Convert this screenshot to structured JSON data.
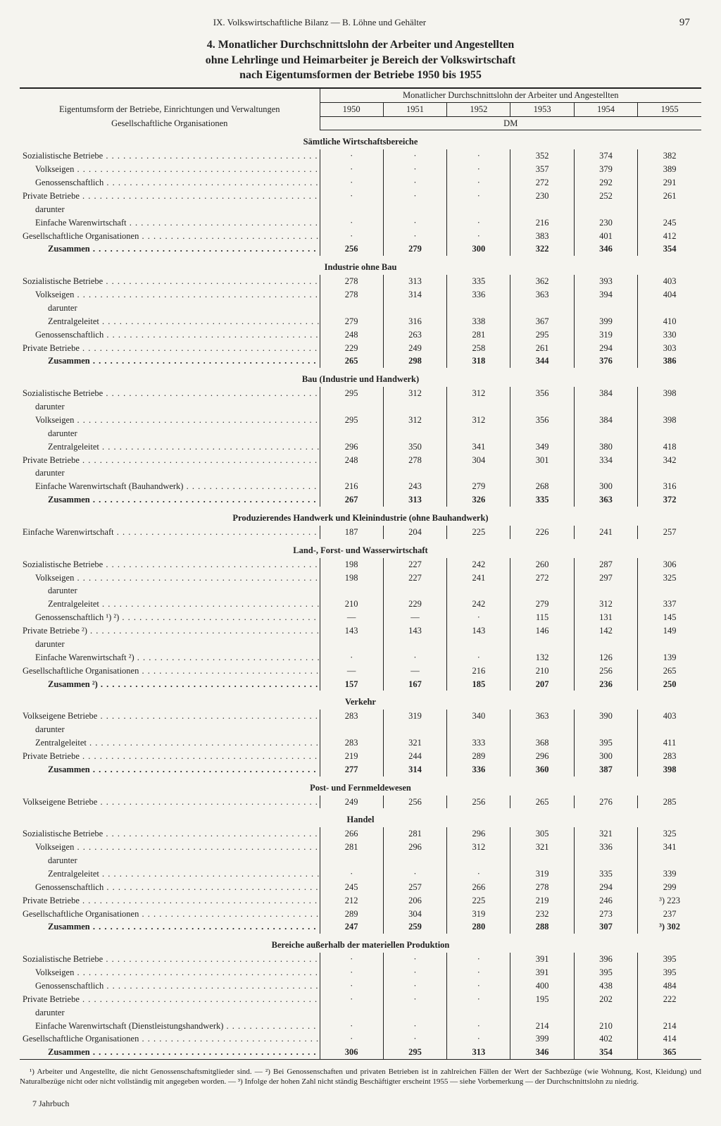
{
  "page_number": "97",
  "running_head": "IX. Volkswirtschaftliche Bilanz — B. Löhne und Gehälter",
  "title_number": "4.",
  "title_line1": "Monatlicher Durchschnittslohn der Arbeiter und Angestellten",
  "title_line2": "ohne Lehrlinge und Heimarbeiter je Bereich der Volkswirtschaft",
  "title_line3": "nach Eigentumsformen der Betriebe 1950 bis 1955",
  "stub_head1": "Eigentumsform der Betriebe, Einrichtungen und Verwaltungen",
  "stub_head2": "Gesellschaftliche Organisationen",
  "span_head": "Monatlicher Durchschnittslohn der Arbeiter und Angestellten",
  "unit_label": "DM",
  "years": [
    "1950",
    "1951",
    "1952",
    "1953",
    "1954",
    "1955"
  ],
  "footer": "7  Jahrbuch",
  "footnotes": "¹) Arbeiter und Angestellte, die nicht Genossenschaftsmitglieder sind. — ²) Bei Genossenschaften und privaten Betrieben ist in zahlreichen Fällen der Wert der Sachbezüge (wie Wohnung, Kost, Kleidung) und Naturalbezüge nicht oder nicht vollständig mit angegeben worden. — ³) Infolge der hohen Zahl nicht ständig Beschäftigter erscheint 1955 — siehe Vorbemerkung — der Durchschnittslohn zu niedrig.",
  "sections": [
    {
      "title": "Sämtliche Wirtschaftsbereiche",
      "rows": [
        {
          "label": "Sozialistische Betriebe",
          "indent": 0,
          "bold": false,
          "v": [
            "·",
            "·",
            "·",
            "352",
            "374",
            "382"
          ]
        },
        {
          "label": "Volkseigen",
          "indent": 1,
          "bold": false,
          "v": [
            "·",
            "·",
            "·",
            "357",
            "379",
            "389"
          ]
        },
        {
          "label": "Genossenschaftlich",
          "indent": 1,
          "bold": false,
          "v": [
            "·",
            "·",
            "·",
            "272",
            "292",
            "291"
          ]
        },
        {
          "label": "Private Betriebe",
          "indent": 0,
          "bold": false,
          "v": [
            "·",
            "·",
            "·",
            "230",
            "252",
            "261"
          ]
        },
        {
          "label": "darunter",
          "indent": 1,
          "bold": false,
          "nodots": true,
          "v": [
            "",
            "",
            "",
            "",
            "",
            ""
          ]
        },
        {
          "label": "Einfache Warenwirtschaft",
          "indent": 1,
          "bold": false,
          "v": [
            "·",
            "·",
            "·",
            "216",
            "230",
            "245"
          ]
        },
        {
          "label": "Gesellschaftliche Organisationen",
          "indent": 0,
          "bold": false,
          "v": [
            "·",
            "·",
            "·",
            "383",
            "401",
            "412"
          ]
        },
        {
          "label": "Zusammen",
          "indent": 2,
          "bold": true,
          "v": [
            "256",
            "279",
            "300",
            "322",
            "346",
            "354"
          ]
        }
      ]
    },
    {
      "title": "Industrie ohne Bau",
      "rows": [
        {
          "label": "Sozialistische Betriebe",
          "indent": 0,
          "bold": false,
          "v": [
            "278",
            "313",
            "335",
            "362",
            "393",
            "403"
          ]
        },
        {
          "label": "Volkseigen",
          "indent": 1,
          "bold": false,
          "v": [
            "278",
            "314",
            "336",
            "363",
            "394",
            "404"
          ]
        },
        {
          "label": "darunter",
          "indent": 2,
          "bold": false,
          "nodots": true,
          "v": [
            "",
            "",
            "",
            "",
            "",
            ""
          ]
        },
        {
          "label": "Zentralgeleitet",
          "indent": 2,
          "bold": false,
          "v": [
            "279",
            "316",
            "338",
            "367",
            "399",
            "410"
          ]
        },
        {
          "label": "Genossenschaftlich",
          "indent": 1,
          "bold": false,
          "v": [
            "248",
            "263",
            "281",
            "295",
            "319",
            "330"
          ]
        },
        {
          "label": "Private Betriebe",
          "indent": 0,
          "bold": false,
          "v": [
            "229",
            "249",
            "258",
            "261",
            "294",
            "303"
          ]
        },
        {
          "label": "Zusammen",
          "indent": 2,
          "bold": true,
          "v": [
            "265",
            "298",
            "318",
            "344",
            "376",
            "386"
          ]
        }
      ]
    },
    {
      "title": "Bau (Industrie und Handwerk)",
      "rows": [
        {
          "label": "Sozialistische Betriebe",
          "indent": 0,
          "bold": false,
          "v": [
            "295",
            "312",
            "312",
            "356",
            "384",
            "398"
          ]
        },
        {
          "label": "darunter",
          "indent": 1,
          "bold": false,
          "nodots": true,
          "v": [
            "",
            "",
            "",
            "",
            "",
            ""
          ]
        },
        {
          "label": "Volkseigen",
          "indent": 1,
          "bold": false,
          "v": [
            "295",
            "312",
            "312",
            "356",
            "384",
            "398"
          ]
        },
        {
          "label": "darunter",
          "indent": 2,
          "bold": false,
          "nodots": true,
          "v": [
            "",
            "",
            "",
            "",
            "",
            ""
          ]
        },
        {
          "label": "Zentralgeleitet",
          "indent": 2,
          "bold": false,
          "v": [
            "296",
            "350",
            "341",
            "349",
            "380",
            "418"
          ]
        },
        {
          "label": "Private Betriebe",
          "indent": 0,
          "bold": false,
          "v": [
            "248",
            "278",
            "304",
            "301",
            "334",
            "342"
          ]
        },
        {
          "label": "darunter",
          "indent": 1,
          "bold": false,
          "nodots": true,
          "v": [
            "",
            "",
            "",
            "",
            "",
            ""
          ]
        },
        {
          "label": "Einfache Warenwirtschaft (Bauhandwerk)",
          "indent": 1,
          "bold": false,
          "v": [
            "216",
            "243",
            "279",
            "268",
            "300",
            "316"
          ]
        },
        {
          "label": "Zusammen",
          "indent": 2,
          "bold": true,
          "v": [
            "267",
            "313",
            "326",
            "335",
            "363",
            "372"
          ]
        }
      ]
    },
    {
      "title": "Produzierendes Handwerk und Kleinindustrie (ohne Bauhandwerk)",
      "rows": [
        {
          "label": "Einfache Warenwirtschaft",
          "indent": 0,
          "bold": false,
          "v": [
            "187",
            "204",
            "225",
            "226",
            "241",
            "257"
          ]
        }
      ]
    },
    {
      "title": "Land-, Forst- und Wasserwirtschaft",
      "rows": [
        {
          "label": "Sozialistische Betriebe",
          "indent": 0,
          "bold": false,
          "v": [
            "198",
            "227",
            "242",
            "260",
            "287",
            "306"
          ]
        },
        {
          "label": "Volkseigen",
          "indent": 1,
          "bold": false,
          "v": [
            "198",
            "227",
            "241",
            "272",
            "297",
            "325"
          ]
        },
        {
          "label": "darunter",
          "indent": 2,
          "bold": false,
          "nodots": true,
          "v": [
            "",
            "",
            "",
            "",
            "",
            ""
          ]
        },
        {
          "label": "Zentralgeleitet",
          "indent": 2,
          "bold": false,
          "v": [
            "210",
            "229",
            "242",
            "279",
            "312",
            "337"
          ]
        },
        {
          "label": "Genossenschaftlich ¹) ²)",
          "indent": 1,
          "bold": false,
          "v": [
            "—",
            "—",
            "·",
            "115",
            "131",
            "145"
          ]
        },
        {
          "label": "Private Betriebe ²)",
          "indent": 0,
          "bold": false,
          "v": [
            "143",
            "143",
            "143",
            "146",
            "142",
            "149"
          ]
        },
        {
          "label": "darunter",
          "indent": 1,
          "bold": false,
          "nodots": true,
          "v": [
            "",
            "",
            "",
            "",
            "",
            ""
          ]
        },
        {
          "label": "Einfache Warenwirtschaft ²)",
          "indent": 1,
          "bold": false,
          "v": [
            "·",
            "·",
            "·",
            "132",
            "126",
            "139"
          ]
        },
        {
          "label": "Gesellschaftliche Organisationen",
          "indent": 0,
          "bold": false,
          "v": [
            "—",
            "—",
            "216",
            "210",
            "256",
            "265"
          ]
        },
        {
          "label": "Zusammen ²)",
          "indent": 2,
          "bold": true,
          "v": [
            "157",
            "167",
            "185",
            "207",
            "236",
            "250"
          ]
        }
      ]
    },
    {
      "title": "Verkehr",
      "rows": [
        {
          "label": "Volkseigene Betriebe",
          "indent": 0,
          "bold": false,
          "v": [
            "283",
            "319",
            "340",
            "363",
            "390",
            "403"
          ]
        },
        {
          "label": "darunter",
          "indent": 1,
          "bold": false,
          "nodots": true,
          "v": [
            "",
            "",
            "",
            "",
            "",
            ""
          ]
        },
        {
          "label": "Zentralgeleitet",
          "indent": 1,
          "bold": false,
          "v": [
            "283",
            "321",
            "333",
            "368",
            "395",
            "411"
          ]
        },
        {
          "label": "Private Betriebe",
          "indent": 0,
          "bold": false,
          "v": [
            "219",
            "244",
            "289",
            "296",
            "300",
            "283"
          ]
        },
        {
          "label": "Zusammen",
          "indent": 2,
          "bold": true,
          "v": [
            "277",
            "314",
            "336",
            "360",
            "387",
            "398"
          ]
        }
      ]
    },
    {
      "title": "Post- und Fernmeldewesen",
      "rows": [
        {
          "label": "Volkseigene Betriebe",
          "indent": 0,
          "bold": false,
          "v": [
            "249",
            "256",
            "256",
            "265",
            "276",
            "285"
          ]
        }
      ]
    },
    {
      "title": "Handel",
      "rows": [
        {
          "label": "Sozialistische Betriebe",
          "indent": 0,
          "bold": false,
          "v": [
            "266",
            "281",
            "296",
            "305",
            "321",
            "325"
          ]
        },
        {
          "label": "Volkseigen",
          "indent": 1,
          "bold": false,
          "v": [
            "281",
            "296",
            "312",
            "321",
            "336",
            "341"
          ]
        },
        {
          "label": "darunter",
          "indent": 2,
          "bold": false,
          "nodots": true,
          "v": [
            "",
            "",
            "",
            "",
            "",
            ""
          ]
        },
        {
          "label": "Zentralgeleitet",
          "indent": 2,
          "bold": false,
          "v": [
            "·",
            "·",
            "·",
            "319",
            "335",
            "339"
          ]
        },
        {
          "label": "Genossenschaftlich",
          "indent": 1,
          "bold": false,
          "v": [
            "245",
            "257",
            "266",
            "278",
            "294",
            "299"
          ]
        },
        {
          "label": "Private Betriebe",
          "indent": 0,
          "bold": false,
          "v": [
            "212",
            "206",
            "225",
            "219",
            "246",
            "³) 223"
          ]
        },
        {
          "label": "Gesellschaftliche Organisationen",
          "indent": 0,
          "bold": false,
          "v": [
            "289",
            "304",
            "319",
            "232",
            "273",
            "237"
          ]
        },
        {
          "label": "Zusammen",
          "indent": 2,
          "bold": true,
          "v": [
            "247",
            "259",
            "280",
            "288",
            "307",
            "³) 302"
          ]
        }
      ]
    },
    {
      "title": "Bereiche außerhalb der materiellen Produktion",
      "rows": [
        {
          "label": "Sozialistische Betriebe",
          "indent": 0,
          "bold": false,
          "v": [
            "·",
            "·",
            "·",
            "391",
            "396",
            "395"
          ]
        },
        {
          "label": "Volkseigen",
          "indent": 1,
          "bold": false,
          "v": [
            "·",
            "·",
            "·",
            "391",
            "395",
            "395"
          ]
        },
        {
          "label": "Genossenschaftlich",
          "indent": 1,
          "bold": false,
          "v": [
            "·",
            "·",
            "·",
            "400",
            "438",
            "484"
          ]
        },
        {
          "label": "Private Betriebe",
          "indent": 0,
          "bold": false,
          "v": [
            "·",
            "·",
            "·",
            "195",
            "202",
            "222"
          ]
        },
        {
          "label": "darunter",
          "indent": 1,
          "bold": false,
          "nodots": true,
          "v": [
            "",
            "",
            "",
            "",
            "",
            ""
          ]
        },
        {
          "label": "Einfache Warenwirtschaft (Dienstleistungshandwerk)",
          "indent": 1,
          "bold": false,
          "v": [
            "·",
            "·",
            "·",
            "214",
            "210",
            "214"
          ]
        },
        {
          "label": "Gesellschaftliche Organisationen",
          "indent": 0,
          "bold": false,
          "v": [
            "·",
            "·",
            "·",
            "399",
            "402",
            "414"
          ]
        },
        {
          "label": "Zusammen",
          "indent": 2,
          "bold": true,
          "v": [
            "306",
            "295",
            "313",
            "346",
            "354",
            "365"
          ]
        }
      ]
    }
  ]
}
